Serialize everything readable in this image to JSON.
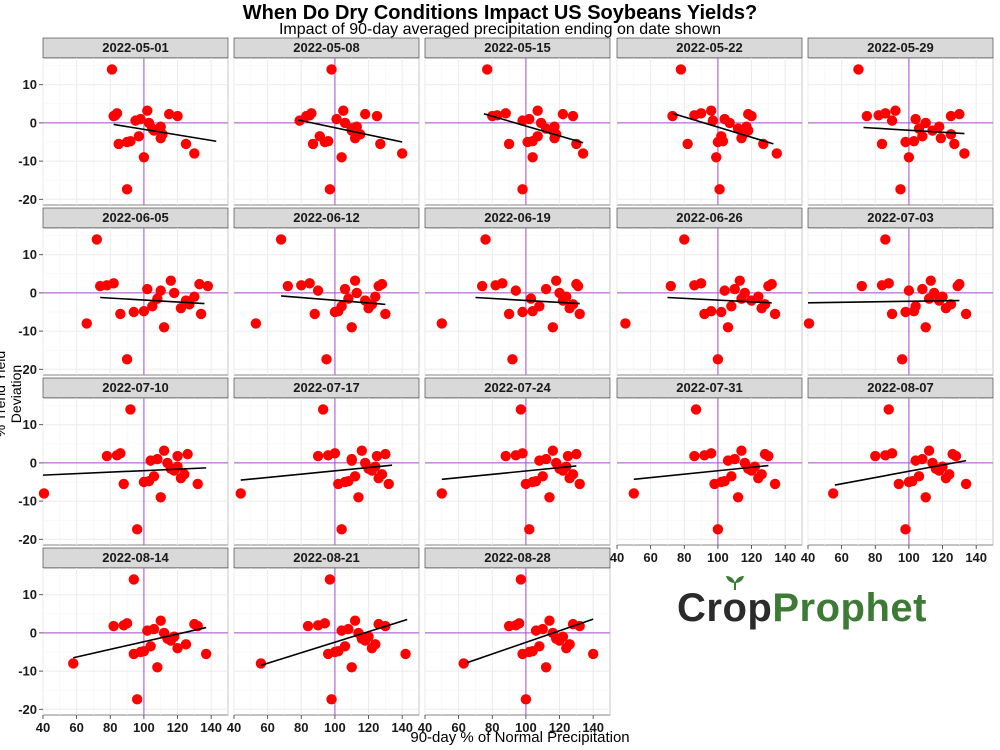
{
  "chart_data": {
    "type": "scatter",
    "title": "When Do Dry Conditions Impact US Soybeans Yields?",
    "subtitle": "Impact of 90-day averaged precipitation ending on date shown",
    "xlabel": "90-day % of Normal Precipitation",
    "ylabel": "% Trend Yield Deviation",
    "xlim": [
      40,
      150
    ],
    "ylim": [
      -21.5,
      17
    ],
    "x_ticks": [
      40,
      60,
      80,
      100,
      120,
      140
    ],
    "y_ticks": [
      10,
      0,
      -10,
      -20
    ],
    "reference_lines": {
      "x": 100,
      "y": 0
    },
    "point_color": "#ff0000",
    "reference_color": "#a64dcc",
    "y_values": [
      14,
      1.8,
      2,
      2.5,
      -5.5,
      -17.4,
      -5,
      -4.8,
      0.6,
      -3.5,
      1,
      -9,
      3.2,
      0,
      -1.5,
      -2,
      -1,
      -4,
      -3,
      2.3,
      1.8,
      -5.5,
      -8
    ],
    "panels": [
      {
        "date": "2022-05-01",
        "x": [
          81,
          82,
          83,
          84,
          85,
          90,
          90,
          92,
          95,
          97,
          98,
          100,
          102,
          103,
          105,
          106,
          110,
          110,
          111,
          115,
          120,
          125,
          130
        ],
        "trend_start": [
          82,
          -0.4
        ],
        "trend_end": [
          143,
          -4.8
        ]
      },
      {
        "date": "2022-05-08",
        "x": [
          98,
          83,
          85,
          86,
          87,
          97,
          94,
          96,
          79,
          91,
          101,
          104,
          105,
          106,
          110,
          110,
          113,
          112,
          115,
          118,
          125,
          127,
          140
        ],
        "trend_start": [
          78,
          0.8
        ],
        "trend_end": [
          140,
          -5.0
        ]
      },
      {
        "date": "2022-05-15",
        "x": [
          77,
          80,
          83,
          88,
          90,
          98,
          101,
          104,
          98,
          107,
          102,
          104,
          107,
          109,
          112,
          116,
          117,
          117,
          118,
          122,
          128,
          130,
          134
        ],
        "trend_start": [
          75,
          2.4
        ],
        "trend_end": [
          134,
          -5.2
        ]
      },
      {
        "date": "2022-05-22",
        "x": [
          78,
          73,
          86,
          90,
          82,
          101,
          100,
          103,
          97,
          102,
          104,
          99,
          96,
          107,
          112,
          118,
          117,
          114,
          115,
          118,
          120,
          127,
          135
        ],
        "trend_start": [
          73,
          2.5
        ],
        "trend_end": [
          133,
          -5.5
        ]
      },
      {
        "date": "2022-05-29",
        "x": [
          70,
          75,
          82,
          86,
          84,
          95,
          98,
          103,
          90,
          108,
          104,
          100,
          92,
          110,
          106,
          114,
          118,
          119,
          125,
          130,
          125,
          127,
          133
        ],
        "trend_start": [
          73,
          -1.2
        ],
        "trend_end": [
          133,
          -2.8
        ]
      }
    ],
    "extra_panels_layout": "4 rows x 5 cols facet grid; last row has 3 panels and the logo"
  },
  "facets": [
    "2022-05-01",
    "2022-05-08",
    "2022-05-15",
    "2022-05-22",
    "2022-05-29",
    "2022-06-05",
    "2022-06-12",
    "2022-06-19",
    "2022-06-26",
    "2022-07-03",
    "2022-07-10",
    "2022-07-17",
    "2022-07-24",
    "2022-07-31",
    "2022-08-07",
    "2022-08-14",
    "2022-08-21",
    "2022-08-28"
  ],
  "trends": {
    "2022-06-05": [
      [
        74,
        -1.2
      ],
      [
        136,
        -2.8
      ]
    ],
    "2022-06-12": [
      [
        68,
        -0.8
      ],
      [
        130,
        -3.0
      ]
    ],
    "2022-06-19": [
      [
        70,
        -1.2
      ],
      [
        132,
        -2.8
      ]
    ],
    "2022-06-26": [
      [
        70,
        -1.2
      ],
      [
        132,
        -2.6
      ]
    ],
    "2022-07-03": [
      [
        40,
        -2.6
      ],
      [
        130,
        -2.0
      ]
    ],
    "2022-07-10": [
      [
        40,
        -3.2
      ],
      [
        137,
        -1.3
      ]
    ],
    "2022-07-17": [
      [
        44,
        -4.5
      ],
      [
        134,
        -0.6
      ]
    ],
    "2022-07-24": [
      [
        50,
        -4.3
      ],
      [
        130,
        -0.8
      ]
    ],
    "2022-07-31": [
      [
        50,
        -4.3
      ],
      [
        130,
        -0.7
      ]
    ],
    "2022-08-07": [
      [
        56,
        -5.8
      ],
      [
        134,
        0.6
      ]
    ],
    "2022-08-14": [
      [
        58,
        -6.5
      ],
      [
        137,
        1.4
      ]
    ],
    "2022-08-21": [
      [
        56,
        -8.5
      ],
      [
        143,
        3.5
      ]
    ],
    "2022-08-28": [
      [
        65,
        -7.8
      ],
      [
        140,
        3.6
      ]
    ]
  },
  "x_sets": {
    "2022-06-05": [
      72,
      74,
      78,
      82,
      86,
      90,
      94,
      100,
      110,
      105,
      102,
      112,
      116,
      118,
      108,
      125,
      130,
      122,
      127,
      133,
      138,
      134,
      66
    ],
    "2022-06-12": [
      68,
      72,
      80,
      85,
      88,
      95,
      100,
      102,
      90,
      104,
      106,
      110,
      112,
      113,
      108,
      118,
      124,
      120,
      122,
      128,
      126,
      130,
      53
    ],
    "2022-06-19": [
      76,
      74,
      82,
      86,
      90,
      92,
      98,
      104,
      94,
      108,
      112,
      116,
      118,
      120,
      103,
      122,
      124,
      126,
      128,
      130,
      131,
      132,
      50
    ],
    "2022-06-26": [
      80,
      72,
      86,
      90,
      92,
      100,
      102,
      96,
      104,
      108,
      110,
      106,
      113,
      116,
      114,
      120,
      124,
      126,
      128,
      132,
      130,
      134,
      45
    ],
    "2022-07-03": [
      86,
      72,
      84,
      88,
      90,
      96,
      98,
      103,
      100,
      104,
      108,
      110,
      113,
      115,
      112,
      118,
      120,
      122,
      125,
      130,
      129,
      134,
      40
    ],
    "2022-07-10": [
      92,
      78,
      84,
      86,
      88,
      96,
      100,
      103,
      104,
      106,
      108,
      110,
      112,
      114,
      116,
      118,
      120,
      122,
      124,
      126,
      120,
      132,
      40
    ],
    "2022-07-17": [
      93,
      90,
      96,
      100,
      102,
      104,
      106,
      108,
      110,
      112,
      110,
      114,
      116,
      118,
      120,
      122,
      124,
      126,
      128,
      130,
      125,
      132,
      44
    ],
    "2022-07-24": [
      97,
      88,
      94,
      98,
      100,
      102,
      104,
      106,
      108,
      110,
      112,
      114,
      116,
      118,
      120,
      122,
      124,
      126,
      128,
      130,
      125,
      132,
      50
    ],
    "2022-07-31": [
      87,
      86,
      92,
      96,
      98,
      100,
      102,
      104,
      106,
      108,
      110,
      112,
      114,
      116,
      118,
      120,
      122,
      124,
      126,
      128,
      130,
      134,
      50
    ],
    "2022-08-07": [
      88,
      80,
      86,
      90,
      94,
      98,
      100,
      102,
      104,
      106,
      108,
      110,
      112,
      114,
      116,
      118,
      120,
      122,
      124,
      126,
      128,
      134,
      55
    ],
    "2022-08-14": [
      94,
      82,
      88,
      90,
      94,
      96,
      98,
      100,
      102,
      104,
      106,
      108,
      110,
      112,
      114,
      116,
      118,
      120,
      125,
      130,
      132,
      137,
      58
    ],
    "2022-08-21": [
      97,
      84,
      90,
      94,
      96,
      98,
      100,
      102,
      104,
      106,
      108,
      110,
      112,
      114,
      116,
      118,
      120,
      122,
      124,
      126,
      130,
      142,
      56
    ],
    "2022-08-28": [
      97,
      90,
      94,
      96,
      98,
      100,
      102,
      104,
      106,
      108,
      110,
      112,
      114,
      116,
      118,
      120,
      122,
      124,
      126,
      128,
      132,
      140,
      63
    ]
  },
  "logo": {
    "part1": "Cr",
    "o": "o",
    "part2": "p",
    "part3": "Prophet",
    "leaf_color": "#3d7a35"
  }
}
